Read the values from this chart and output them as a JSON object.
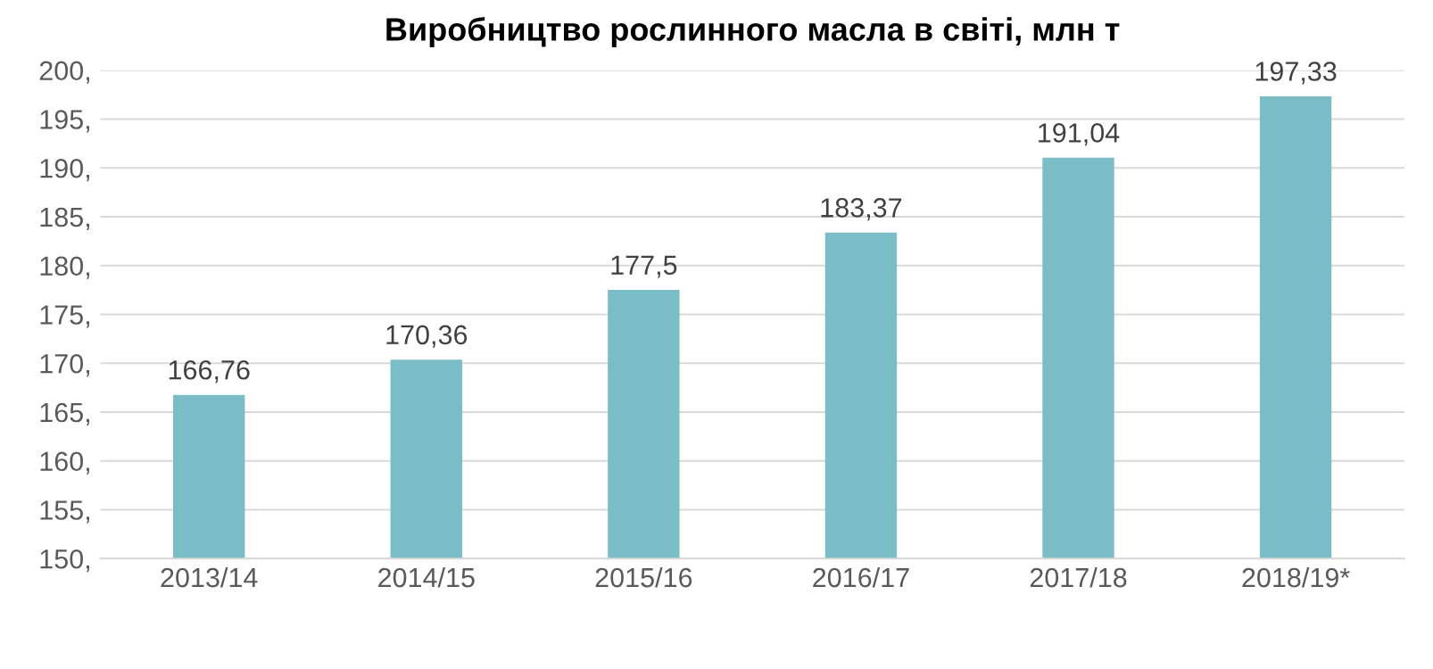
{
  "chart_data": {
    "type": "bar",
    "title": "Виробництво рослинного масла в світі, млн т",
    "categories": [
      "2013/14",
      "2014/15",
      "2015/16",
      "2016/17",
      "2017/18",
      "2018/19*"
    ],
    "values": [
      166.76,
      170.36,
      177.5,
      183.37,
      191.04,
      197.33
    ],
    "value_labels": [
      "166,76",
      "170,36",
      "177,5",
      "183,37",
      "191,04",
      "197,33"
    ],
    "color": "#7bbdc6",
    "ylim": [
      150,
      200
    ],
    "yticks": [
      {
        "value": 150,
        "label": "150,"
      },
      {
        "value": 155,
        "label": "155,"
      },
      {
        "value": 160,
        "label": "160,"
      },
      {
        "value": 165,
        "label": "165,"
      },
      {
        "value": 170,
        "label": "170,"
      },
      {
        "value": 175,
        "label": "175,"
      },
      {
        "value": 180,
        "label": "180,"
      },
      {
        "value": 185,
        "label": "185,"
      },
      {
        "value": 190,
        "label": "190,"
      },
      {
        "value": 195,
        "label": "195,"
      },
      {
        "value": 200,
        "label": "200,"
      }
    ],
    "grid": "y",
    "legend": false
  }
}
